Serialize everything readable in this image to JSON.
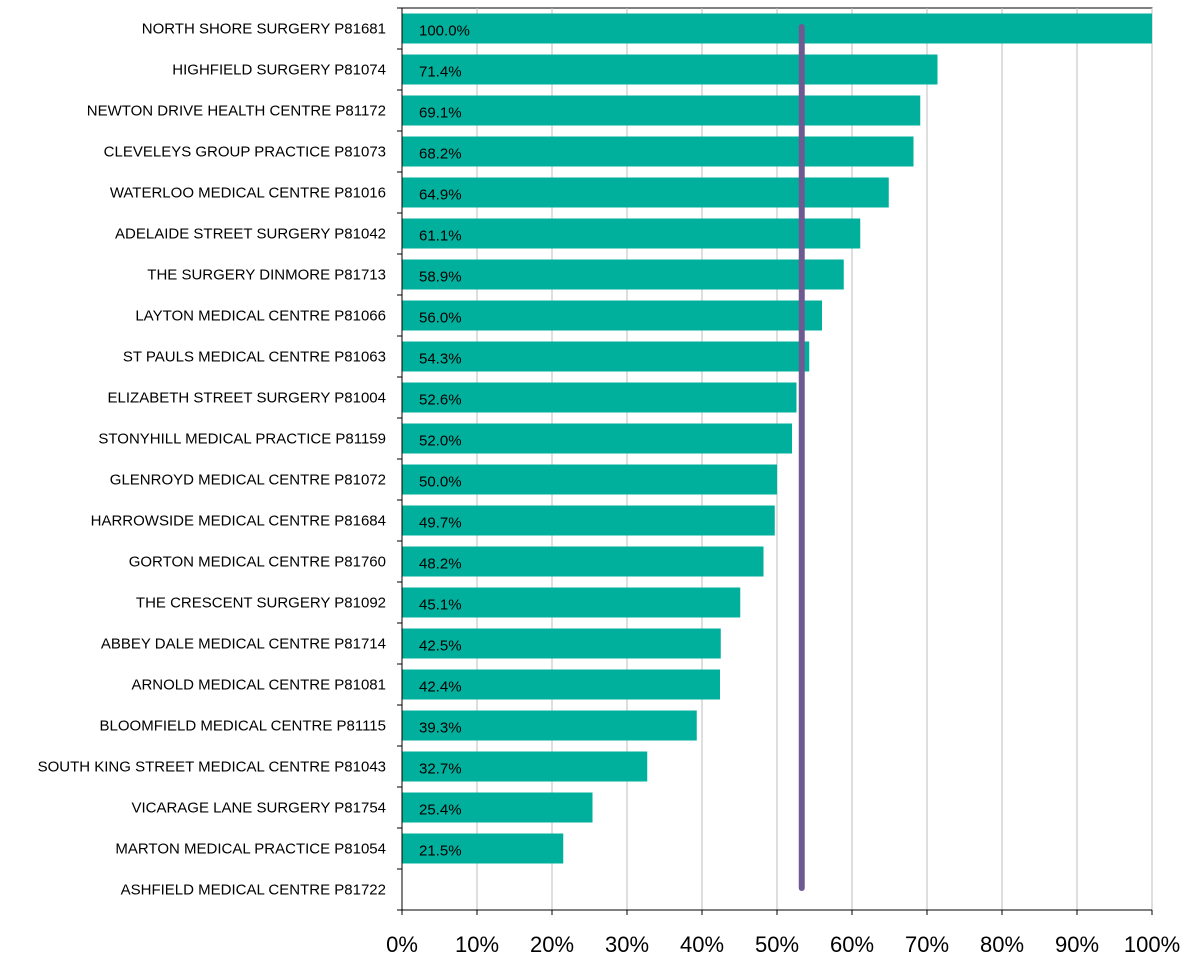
{
  "chart_data": {
    "type": "bar",
    "orientation": "horizontal",
    "categories": [
      "NORTH SHORE SURGERY P81681",
      "HIGHFIELD SURGERY P81074",
      "NEWTON DRIVE HEALTH CENTRE P81172",
      "CLEVELEYS GROUP PRACTICE P81073",
      "WATERLOO MEDICAL CENTRE P81016",
      "ADELAIDE STREET SURGERY P81042",
      "THE SURGERY DINMORE P81713",
      "LAYTON MEDICAL CENTRE P81066",
      "ST PAULS MEDICAL CENTRE P81063",
      "ELIZABETH STREET SURGERY P81004",
      "STONYHILL MEDICAL PRACTICE P81159",
      "GLENROYD MEDICAL CENTRE P81072",
      "HARROWSIDE MEDICAL CENTRE P81684",
      "GORTON MEDICAL CENTRE P81760",
      "THE CRESCENT SURGERY P81092",
      "ABBEY DALE MEDICAL CENTRE P81714",
      "ARNOLD MEDICAL CENTRE P81081",
      "BLOOMFIELD MEDICAL CENTRE P81115",
      "SOUTH KING STREET MEDICAL CENTRE P81043",
      "VICARAGE LANE SURGERY P81754",
      "MARTON MEDICAL PRACTICE P81054",
      "ASHFIELD MEDICAL CENTRE P81722"
    ],
    "values": [
      100.0,
      71.4,
      69.1,
      68.2,
      64.9,
      61.1,
      58.9,
      56.0,
      54.3,
      52.6,
      52.0,
      50.0,
      49.7,
      48.2,
      45.1,
      42.5,
      42.4,
      39.3,
      32.7,
      25.4,
      21.5,
      null
    ],
    "data_labels": [
      "100.0%",
      "71.4%",
      "69.1%",
      "68.2%",
      "64.9%",
      "61.1%",
      "58.9%",
      "56.0%",
      "54.3%",
      "52.6%",
      "52.0%",
      "50.0%",
      "49.7%",
      "48.2%",
      "45.1%",
      "42.5%",
      "42.4%",
      "39.3%",
      "32.7%",
      "25.4%",
      "21.5%",
      ""
    ],
    "reference_line": {
      "value": 53.3
    },
    "xlim": [
      0,
      100
    ],
    "x_ticks": [
      0,
      10,
      20,
      30,
      40,
      50,
      60,
      70,
      80,
      90,
      100
    ],
    "x_tick_labels": [
      "0%",
      "10%",
      "20%",
      "30%",
      "40%",
      "50%",
      "60%",
      "70%",
      "80%",
      "90%",
      "100%"
    ],
    "title": "",
    "xlabel": "",
    "ylabel": "",
    "grid": "vertical",
    "legend": "none",
    "colors": {
      "bar": "#00AF9C",
      "reference_line": "#6E5A92",
      "grid": "#BEBEBE",
      "axis": "#000000"
    }
  }
}
